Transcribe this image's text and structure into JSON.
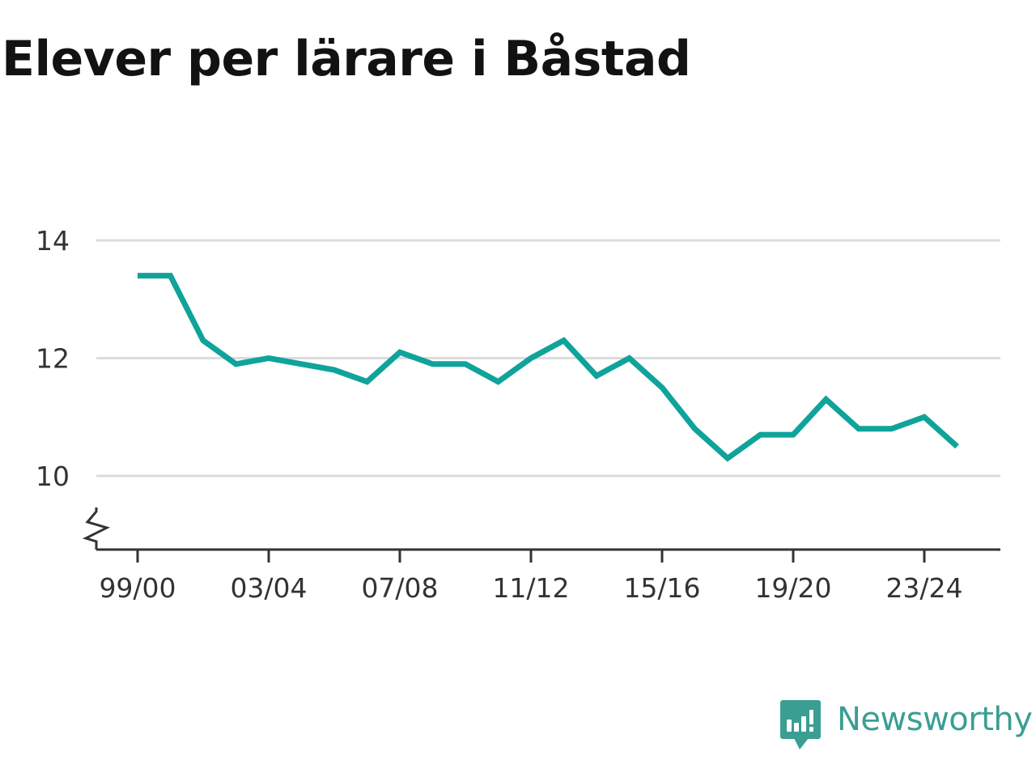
{
  "brand": {
    "name": "Newsworthy",
    "color": "#3a9e93"
  },
  "chart_data": {
    "type": "line",
    "title": "Elever per lärare i Båstad",
    "xlabel": "",
    "ylabel": "",
    "categories": [
      "99/00",
      "00/01",
      "01/02",
      "02/03",
      "03/04",
      "04/05",
      "05/06",
      "06/07",
      "07/08",
      "08/09",
      "09/10",
      "10/11",
      "11/12",
      "12/13",
      "13/14",
      "14/15",
      "15/16",
      "16/17",
      "17/18",
      "18/19",
      "19/20",
      "20/21",
      "21/22",
      "22/23",
      "23/24",
      "24/25"
    ],
    "x_tick_labels": [
      "99/00",
      "03/04",
      "07/08",
      "11/12",
      "15/16",
      "19/20",
      "23/24"
    ],
    "series": [
      {
        "color": "#0fa39a",
        "values": [
          13.4,
          13.4,
          12.3,
          11.9,
          12.0,
          11.9,
          11.8,
          11.6,
          12.1,
          11.9,
          11.9,
          11.6,
          12.0,
          12.3,
          11.7,
          12.0,
          11.5,
          10.8,
          10.3,
          10.7,
          10.7,
          11.3,
          10.8,
          10.8,
          11.0,
          10.5
        ]
      }
    ],
    "y_ticks": [
      10,
      12,
      14
    ],
    "ylim": [
      8.8,
      14
    ],
    "y_axis_break": true,
    "grid": true,
    "legend": "none"
  }
}
